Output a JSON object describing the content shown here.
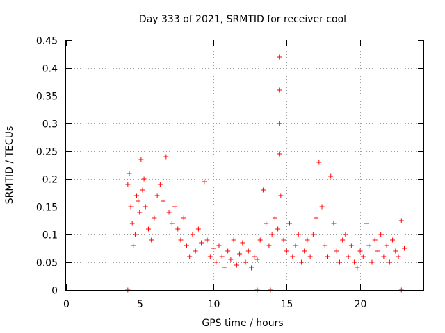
{
  "chart_data": {
    "type": "scatter",
    "title": "Day 333 of 2021, SRMTID for receiver cool",
    "xlabel": "GPS time / hours",
    "ylabel": "SRMTID / TECUs",
    "xlim": [
      0,
      24.3
    ],
    "ylim": [
      0,
      0.45
    ],
    "xticks": [
      "0",
      "5",
      "10",
      "15",
      "20"
    ],
    "yticks": [
      "0",
      "0.05",
      "0.1",
      "0.15",
      "0.2",
      "0.25",
      "0.3",
      "0.35",
      "0.4",
      "0.45"
    ],
    "grid": true,
    "marker": "plus",
    "series": [
      {
        "name": "SRMTID",
        "color": "#ff0000",
        "points": [
          [
            4.2,
            0.19
          ],
          [
            4.3,
            0.21
          ],
          [
            4.4,
            0.15
          ],
          [
            4.5,
            0.12
          ],
          [
            4.6,
            0.08
          ],
          [
            4.7,
            0.1
          ],
          [
            4.8,
            0.17
          ],
          [
            4.9,
            0.16
          ],
          [
            5.0,
            0.14
          ],
          [
            5.1,
            0.235
          ],
          [
            5.2,
            0.18
          ],
          [
            5.3,
            0.2
          ],
          [
            5.4,
            0.15
          ],
          [
            5.6,
            0.11
          ],
          [
            5.8,
            0.09
          ],
          [
            6.0,
            0.13
          ],
          [
            6.2,
            0.17
          ],
          [
            6.4,
            0.19
          ],
          [
            6.6,
            0.16
          ],
          [
            6.8,
            0.24
          ],
          [
            7.0,
            0.14
          ],
          [
            7.2,
            0.12
          ],
          [
            7.4,
            0.15
          ],
          [
            7.6,
            0.11
          ],
          [
            7.8,
            0.09
          ],
          [
            8.0,
            0.13
          ],
          [
            8.2,
            0.08
          ],
          [
            8.4,
            0.06
          ],
          [
            8.6,
            0.1
          ],
          [
            8.8,
            0.07
          ],
          [
            9.0,
            0.11
          ],
          [
            9.2,
            0.085
          ],
          [
            9.4,
            0.195
          ],
          [
            9.6,
            0.09
          ],
          [
            9.8,
            0.06
          ],
          [
            10.0,
            0.075
          ],
          [
            10.2,
            0.05
          ],
          [
            10.4,
            0.08
          ],
          [
            10.6,
            0.06
          ],
          [
            10.8,
            0.04
          ],
          [
            11.0,
            0.07
          ],
          [
            11.2,
            0.055
          ],
          [
            11.4,
            0.09
          ],
          [
            11.6,
            0.045
          ],
          [
            11.8,
            0.065
          ],
          [
            12.0,
            0.085
          ],
          [
            12.2,
            0.05
          ],
          [
            12.4,
            0.07
          ],
          [
            12.6,
            0.04
          ],
          [
            12.8,
            0.06
          ],
          [
            13.0,
            0.055
          ],
          [
            13.2,
            0.09
          ],
          [
            13.4,
            0.18
          ],
          [
            13.6,
            0.12
          ],
          [
            13.8,
            0.08
          ],
          [
            14.0,
            0.1
          ],
          [
            14.2,
            0.13
          ],
          [
            14.4,
            0.11
          ],
          [
            14.5,
            0.42
          ],
          [
            14.5,
            0.36
          ],
          [
            14.5,
            0.3
          ],
          [
            14.5,
            0.245
          ],
          [
            14.6,
            0.17
          ],
          [
            14.8,
            0.09
          ],
          [
            15.0,
            0.07
          ],
          [
            15.2,
            0.12
          ],
          [
            15.4,
            0.06
          ],
          [
            15.6,
            0.08
          ],
          [
            15.8,
            0.1
          ],
          [
            16.0,
            0.05
          ],
          [
            16.2,
            0.07
          ],
          [
            16.4,
            0.09
          ],
          [
            16.6,
            0.06
          ],
          [
            16.8,
            0.1
          ],
          [
            17.0,
            0.13
          ],
          [
            17.2,
            0.23
          ],
          [
            17.4,
            0.15
          ],
          [
            17.6,
            0.08
          ],
          [
            17.8,
            0.06
          ],
          [
            18.0,
            0.205
          ],
          [
            18.2,
            0.12
          ],
          [
            18.4,
            0.07
          ],
          [
            18.6,
            0.05
          ],
          [
            18.8,
            0.09
          ],
          [
            19.0,
            0.1
          ],
          [
            19.2,
            0.06
          ],
          [
            19.4,
            0.08
          ],
          [
            19.6,
            0.05
          ],
          [
            19.8,
            0.04
          ],
          [
            20.0,
            0.07
          ],
          [
            20.2,
            0.06
          ],
          [
            20.4,
            0.12
          ],
          [
            20.6,
            0.08
          ],
          [
            20.8,
            0.05
          ],
          [
            21.0,
            0.09
          ],
          [
            21.2,
            0.07
          ],
          [
            21.4,
            0.1
          ],
          [
            21.6,
            0.06
          ],
          [
            21.8,
            0.08
          ],
          [
            22.0,
            0.05
          ],
          [
            22.2,
            0.09
          ],
          [
            22.4,
            0.07
          ],
          [
            22.6,
            0.06
          ],
          [
            22.8,
            0.125
          ],
          [
            23.0,
            0.075
          ],
          [
            4.2,
            0.0
          ],
          [
            13.0,
            0.0
          ],
          [
            13.9,
            0.0
          ],
          [
            22.8,
            0.0
          ]
        ]
      }
    ]
  }
}
